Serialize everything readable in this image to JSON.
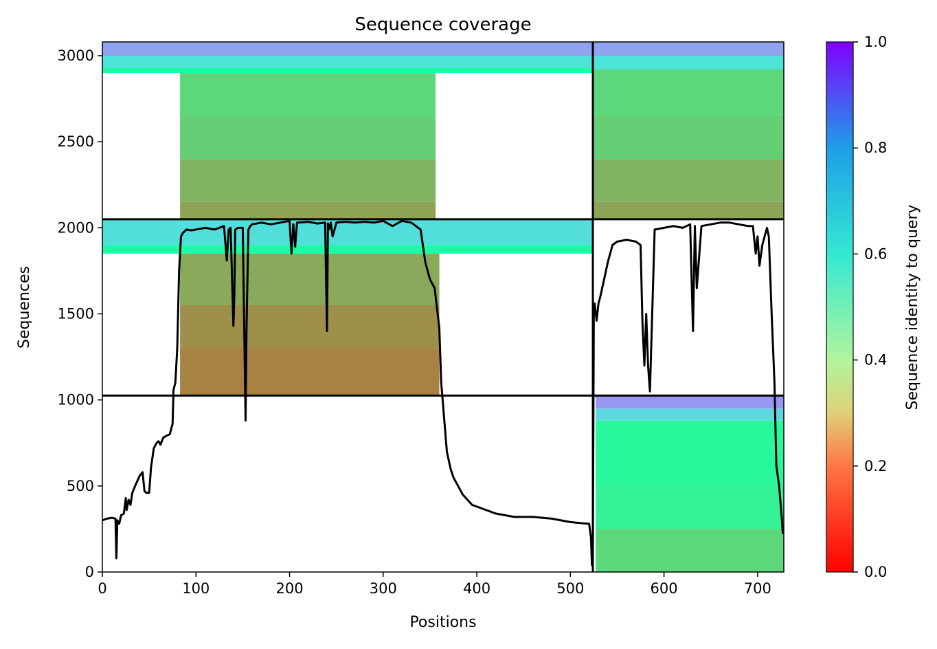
{
  "chart_data": {
    "type": "heatmap",
    "title": "Sequence coverage",
    "xlabel": "Positions",
    "ylabel": "Sequences",
    "xlim": [
      0,
      728
    ],
    "ylim": [
      0,
      3080
    ],
    "xticks": [
      0,
      100,
      200,
      300,
      400,
      500,
      600,
      700
    ],
    "yticks": [
      0,
      500,
      1000,
      1500,
      2000,
      2500,
      3000
    ],
    "colorbar": {
      "label": "Sequence identity to query",
      "range": [
        0.0,
        1.0
      ],
      "ticks": [
        "0.0",
        "0.2",
        "0.4",
        "0.6",
        "0.8",
        "1.0"
      ],
      "colormap": "rainbow_r"
    },
    "chain_boundary_x": 524,
    "group_boundaries_y": [
      1025,
      2050
    ],
    "blocks": [
      {
        "name": "group-3",
        "y_range": [
          2050,
          3080
        ],
        "segments": [
          {
            "x_range": [
              0,
              524
            ],
            "rows": [
              [
                2050,
                2150,
                0.22,
                83,
                356
              ],
              [
                2150,
                2400,
                0.25,
                83,
                356
              ],
              [
                2400,
                2650,
                0.3,
                83,
                356
              ],
              [
                2650,
                2900,
                0.32,
                83,
                356
              ],
              [
                2900,
                2930,
                0.45,
                0,
                524
              ],
              [
                2930,
                3000,
                0.65,
                0,
                524
              ],
              [
                3000,
                3080,
                0.78,
                0,
                524
              ]
            ]
          },
          {
            "x_range": [
              524,
              728
            ],
            "rows": [
              [
                2050,
                2150,
                0.22,
                524,
                728
              ],
              [
                2150,
                2400,
                0.25,
                524,
                728
              ],
              [
                2400,
                2650,
                0.3,
                524,
                728
              ],
              [
                2650,
                2920,
                0.32,
                524,
                728
              ],
              [
                2920,
                3000,
                0.65,
                524,
                728
              ],
              [
                3000,
                3080,
                0.78,
                524,
                728
              ]
            ]
          }
        ]
      },
      {
        "name": "group-2",
        "y_range": [
          1025,
          2050
        ],
        "segments": [
          {
            "x_range": [
              0,
              524
            ],
            "rows": [
              [
                1025,
                1300,
                0.17,
                83,
                360
              ],
              [
                1300,
                1550,
                0.19,
                83,
                360
              ],
              [
                1550,
                1850,
                0.23,
                83,
                360
              ],
              [
                1850,
                1900,
                0.45,
                0,
                524
              ],
              [
                1900,
                2050,
                0.66,
                0,
                524
              ]
            ]
          },
          {
            "x_range": [
              524,
              728
            ],
            "rows": []
          }
        ]
      },
      {
        "name": "group-1",
        "y_range": [
          0,
          1025
        ],
        "segments": [
          {
            "x_range": [
              0,
              524
            ],
            "rows": []
          },
          {
            "x_range": [
              524,
              728
            ],
            "rows": [
              [
                0,
                250,
                0.32,
                527,
                728
              ],
              [
                250,
                500,
                0.4,
                527,
                728
              ],
              [
                500,
                880,
                0.42,
                527,
                728
              ],
              [
                880,
                950,
                0.68,
                527,
                728
              ],
              [
                950,
                1025,
                0.8,
                527,
                728
              ]
            ]
          }
        ]
      }
    ],
    "coverage_line": {
      "color": "#000000",
      "x": [
        0,
        5,
        10,
        14,
        15,
        16,
        18,
        20,
        23,
        25,
        26,
        28,
        30,
        32,
        35,
        40,
        43,
        45,
        47,
        50,
        52,
        55,
        58,
        60,
        62,
        65,
        68,
        72,
        75,
        76,
        78,
        80,
        82,
        84,
        86,
        90,
        95,
        100,
        110,
        120,
        130,
        133,
        135,
        137,
        140,
        141,
        142,
        145,
        150,
        153,
        154,
        156,
        158,
        160,
        170,
        180,
        190,
        200,
        202,
        204,
        206,
        208,
        210,
        220,
        230,
        238,
        240,
        241,
        242,
        244,
        246,
        250,
        260,
        270,
        280,
        290,
        300,
        310,
        320,
        330,
        340,
        345,
        350,
        355,
        360,
        362,
        365,
        368,
        372,
        375,
        380,
        385,
        390,
        395,
        400,
        410,
        420,
        430,
        440,
        450,
        460,
        470,
        480,
        490,
        500,
        510,
        520,
        522,
        523,
        524,
        525,
        526,
        528,
        530,
        532,
        534,
        536,
        540,
        545,
        550,
        560,
        570,
        575,
        577,
        579,
        581,
        583,
        585,
        590,
        600,
        610,
        620,
        628,
        631,
        633,
        635,
        640,
        650,
        660,
        670,
        680,
        690,
        695,
        698,
        700,
        702,
        705,
        710,
        712,
        715,
        718,
        720,
        723,
        726,
        727
      ],
      "y": [
        300,
        310,
        315,
        310,
        80,
        300,
        280,
        330,
        340,
        430,
        360,
        420,
        390,
        460,
        500,
        560,
        580,
        470,
        460,
        460,
        610,
        720,
        750,
        760,
        740,
        780,
        790,
        800,
        860,
        1060,
        1100,
        1300,
        1750,
        1950,
        1970,
        1990,
        1985,
        1990,
        2000,
        1990,
        2010,
        1810,
        1990,
        2000,
        1430,
        1600,
        1990,
        2000,
        2000,
        880,
        1400,
        1990,
        2010,
        2020,
        2030,
        2020,
        2030,
        2040,
        1850,
        2020,
        1890,
        2030,
        2030,
        2035,
        2025,
        2030,
        1400,
        2025,
        1990,
        2030,
        1950,
        2030,
        2035,
        2030,
        2035,
        2030,
        2040,
        2010,
        2040,
        2030,
        1990,
        1800,
        1700,
        1650,
        1420,
        1100,
        900,
        700,
        600,
        550,
        500,
        450,
        420,
        390,
        380,
        360,
        340,
        330,
        320,
        320,
        320,
        315,
        310,
        300,
        290,
        285,
        280,
        200,
        40,
        100,
        1500,
        1560,
        1460,
        1560,
        1600,
        1650,
        1700,
        1800,
        1900,
        1920,
        1930,
        1920,
        1900,
        1450,
        1200,
        1500,
        1200,
        1050,
        1990,
        2000,
        2010,
        2000,
        2020,
        1400,
        2010,
        1650,
        2010,
        2020,
        2030,
        2030,
        2020,
        2010,
        2010,
        1850,
        1950,
        1780,
        1900,
        2000,
        1950,
        1500,
        1100,
        620,
        500,
        300,
        220
      ]
    }
  }
}
